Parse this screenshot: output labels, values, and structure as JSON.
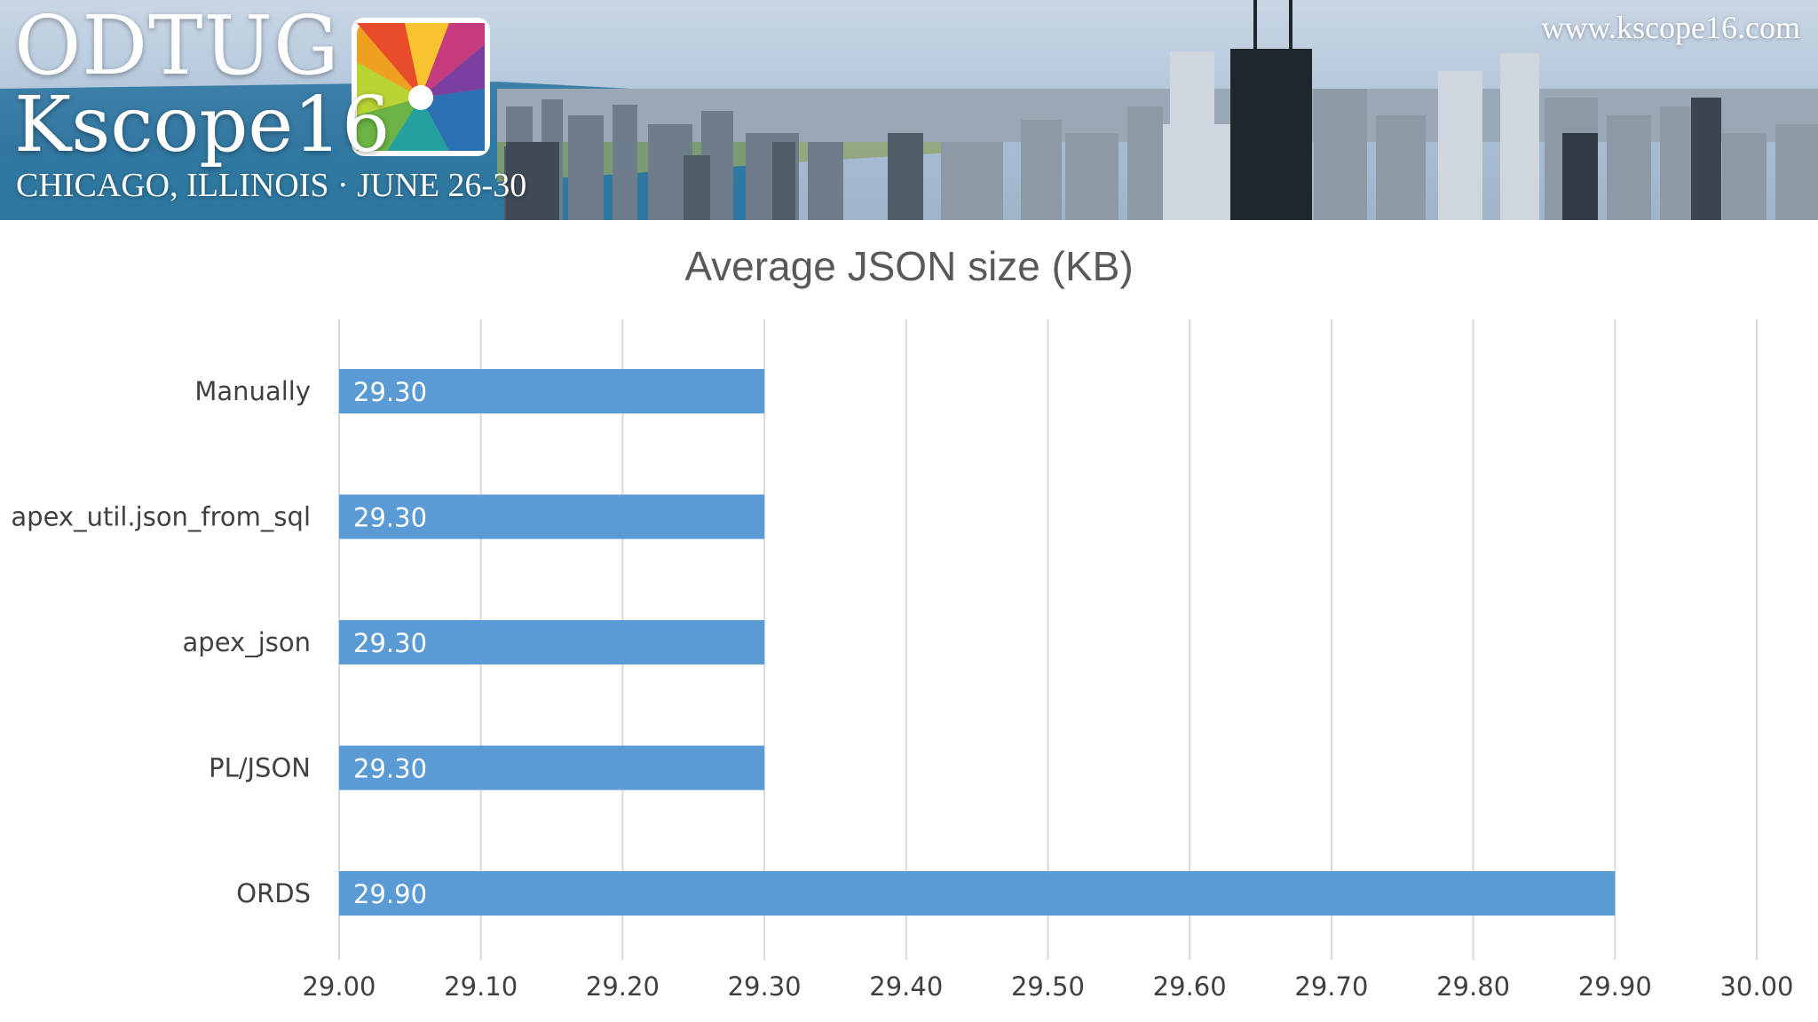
{
  "banner": {
    "brand_top": "ODTUG",
    "brand_bottom": "Kscope16",
    "location_dates": "CHICAGO, ILLINOIS · JUNE 26-30",
    "url": "www.kscope16.com"
  },
  "chart_data": {
    "type": "bar",
    "orientation": "horizontal",
    "title": "Average JSON size (KB)",
    "categories": [
      "Manually",
      "apex_util.json_from_sql",
      "apex_json",
      "PL/JSON",
      "ORDS"
    ],
    "values": [
      29.3,
      29.3,
      29.3,
      29.3,
      29.9
    ],
    "data_labels": [
      "29.30",
      "29.30",
      "29.30",
      "29.30",
      "29.90"
    ],
    "xlim": [
      29.0,
      30.0
    ],
    "x_ticks": [
      "29.00",
      "29.10",
      "29.20",
      "29.30",
      "29.40",
      "29.50",
      "29.60",
      "29.70",
      "29.80",
      "29.90",
      "30.00"
    ],
    "grid": "vertical",
    "legend": "none",
    "bar_color": "#5b9bd5"
  }
}
